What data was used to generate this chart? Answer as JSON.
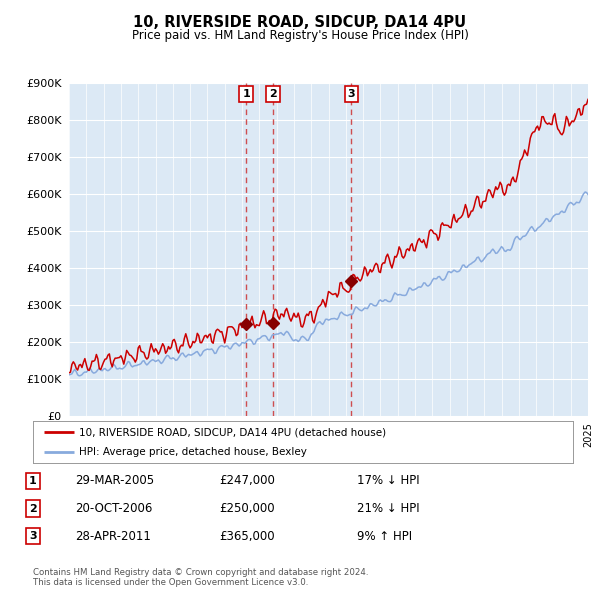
{
  "title": "10, RIVERSIDE ROAD, SIDCUP, DA14 4PU",
  "subtitle": "Price paid vs. HM Land Registry's House Price Index (HPI)",
  "hpi_label": "HPI: Average price, detached house, Bexley",
  "property_label": "10, RIVERSIDE ROAD, SIDCUP, DA14 4PU (detached house)",
  "background_color": "#dce9f5",
  "grid_color": "#ffffff",
  "red_line_color": "#cc0000",
  "blue_line_color": "#88aadd",
  "sale_marker_color": "#880000",
  "vline_color": "#cc3333",
  "sales": [
    {
      "date_num": 2005.24,
      "price": 247000,
      "label": "1"
    },
    {
      "date_num": 2006.8,
      "price": 250000,
      "label": "2"
    },
    {
      "date_num": 2011.32,
      "price": 365000,
      "label": "3"
    }
  ],
  "table_rows": [
    {
      "num": "1",
      "date": "29-MAR-2005",
      "price": "£247,000",
      "pct": "17% ↓ HPI"
    },
    {
      "num": "2",
      "date": "20-OCT-2006",
      "price": "£250,000",
      "pct": "21% ↓ HPI"
    },
    {
      "num": "3",
      "date": "28-APR-2011",
      "price": "£365,000",
      "pct": "9% ↑ HPI"
    }
  ],
  "footer": "Contains HM Land Registry data © Crown copyright and database right 2024.\nThis data is licensed under the Open Government Licence v3.0.",
  "ylim": [
    0,
    900000
  ],
  "yticks": [
    0,
    100000,
    200000,
    300000,
    400000,
    500000,
    600000,
    700000,
    800000,
    900000
  ],
  "xstart": 1995,
  "xend": 2025
}
